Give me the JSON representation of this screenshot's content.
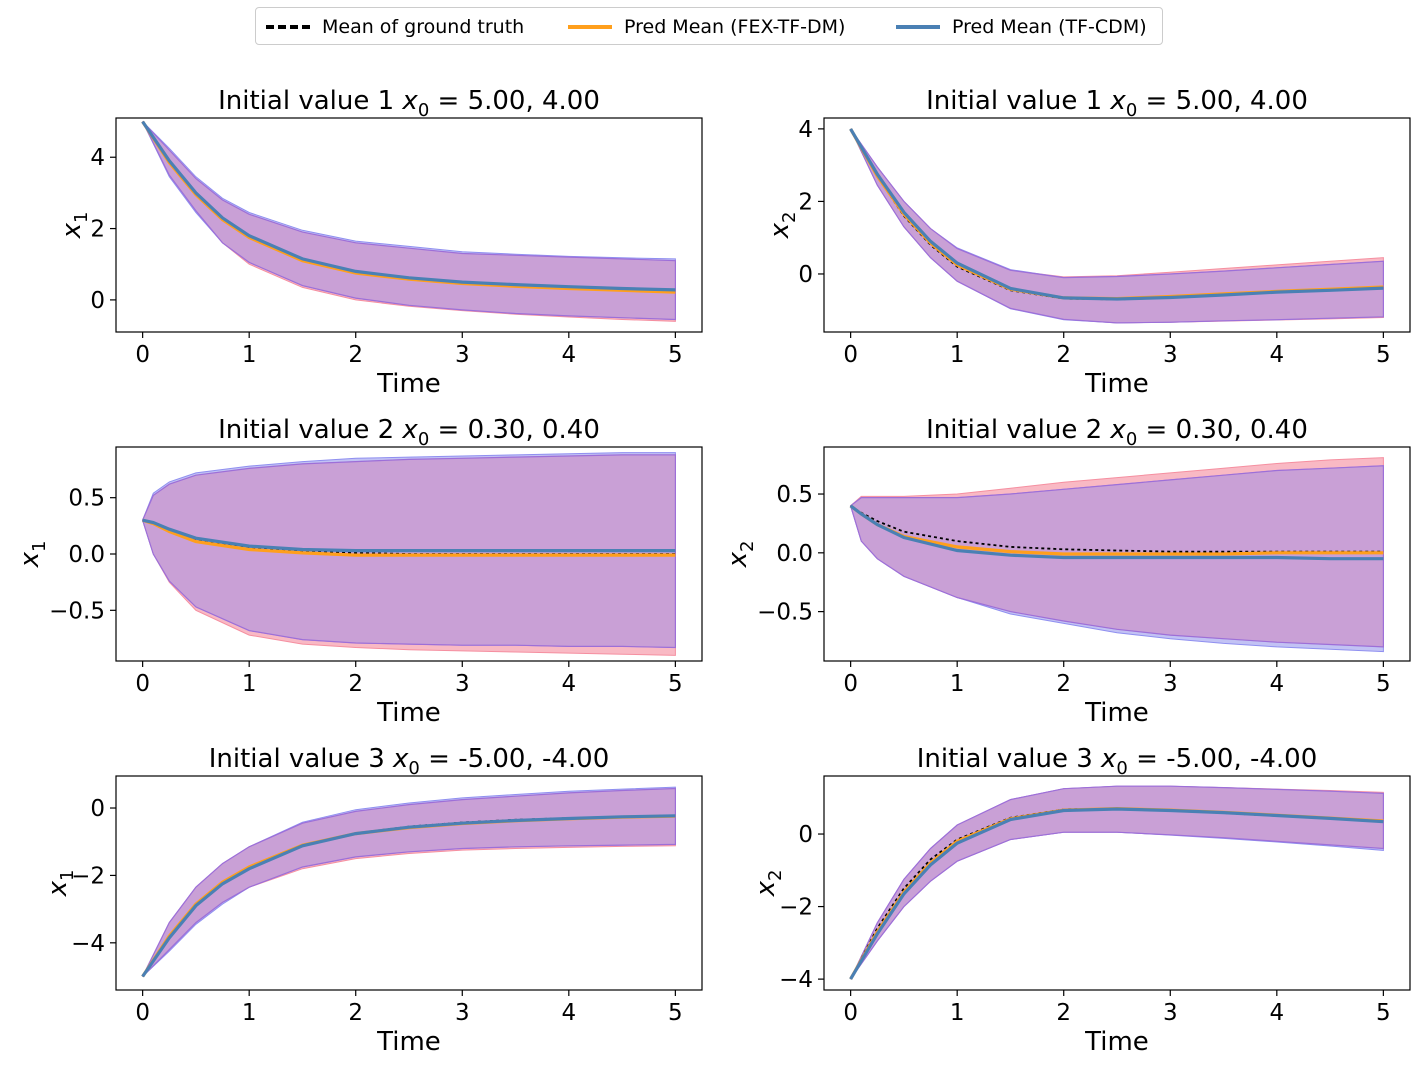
{
  "legend": {
    "items": [
      {
        "label": "Mean of ground truth",
        "color": "#000000",
        "style": "dashed"
      },
      {
        "label": "Pred Mean (FEX-TF-DM)",
        "color": "#ff9f1c",
        "style": "solid"
      },
      {
        "label": "Pred Mean (TF-CDM)",
        "color": "#4a80b4",
        "style": "solid"
      }
    ]
  },
  "colors": {
    "band_fex": "#f7a1b0",
    "band_cdm": "#a8a8f0",
    "band_overlap": "#c9a0d6",
    "band_edge": "#9d6fd8"
  },
  "chart_data": [
    {
      "type": "line",
      "title": "Initial value 1 x0 = 5.00, 4.00",
      "title_prefix": "Initial value 1 ",
      "title_suffix": " = 5.00, 4.00",
      "xlabel": "Time",
      "ylabel_base": "x",
      "ylabel_sub": "1",
      "xlim": [
        -0.25,
        5.25
      ],
      "ylim": [
        -0.9,
        5.1
      ],
      "xticks": [
        0,
        1,
        2,
        3,
        4,
        5
      ],
      "yticks": [
        0,
        2,
        4
      ],
      "ytick_labels": [
        "0",
        "2",
        "4"
      ],
      "x": [
        0,
        0.25,
        0.5,
        0.75,
        1,
        1.5,
        2,
        2.5,
        3,
        3.5,
        4,
        4.5,
        5
      ],
      "gt_mean": [
        5.0,
        3.9,
        3.0,
        2.3,
        1.8,
        1.1,
        0.75,
        0.6,
        0.48,
        0.42,
        0.36,
        0.32,
        0.28
      ],
      "fex_mean": [
        5.0,
        3.85,
        2.95,
        2.25,
        1.75,
        1.1,
        0.75,
        0.58,
        0.46,
        0.38,
        0.32,
        0.27,
        0.22
      ],
      "cdm_mean": [
        5.0,
        3.9,
        3.0,
        2.3,
        1.8,
        1.15,
        0.8,
        0.62,
        0.5,
        0.43,
        0.37,
        0.32,
        0.28
      ],
      "fex_lower": [
        5.0,
        3.5,
        2.5,
        1.6,
        1.0,
        0.35,
        0.0,
        -0.18,
        -0.3,
        -0.4,
        -0.48,
        -0.55,
        -0.6
      ],
      "fex_upper": [
        5.0,
        4.2,
        3.4,
        2.8,
        2.4,
        1.9,
        1.6,
        1.45,
        1.3,
        1.25,
        1.2,
        1.15,
        1.1
      ],
      "cdm_lower": [
        5.0,
        3.45,
        2.45,
        1.6,
        1.05,
        0.4,
        0.05,
        -0.15,
        -0.28,
        -0.38,
        -0.45,
        -0.5,
        -0.55
      ],
      "cdm_upper": [
        5.0,
        4.25,
        3.45,
        2.85,
        2.45,
        1.95,
        1.65,
        1.5,
        1.35,
        1.28,
        1.22,
        1.18,
        1.15
      ]
    },
    {
      "type": "line",
      "title": "Initial value 1 x0 = 5.00, 4.00",
      "title_prefix": "Initial value 1 ",
      "title_suffix": " = 5.00, 4.00",
      "xlabel": "Time",
      "ylabel_base": "x",
      "ylabel_sub": "2",
      "xlim": [
        -0.25,
        5.25
      ],
      "ylim": [
        -1.6,
        4.3
      ],
      "xticks": [
        0,
        1,
        2,
        3,
        4,
        5
      ],
      "yticks": [
        0,
        2,
        4
      ],
      "ytick_labels": [
        "0",
        "2",
        "4"
      ],
      "x": [
        0,
        0.25,
        0.5,
        0.75,
        1,
        1.5,
        2,
        2.5,
        3,
        3.5,
        4,
        4.5,
        5
      ],
      "gt_mean": [
        4.0,
        2.7,
        1.6,
        0.8,
        0.2,
        -0.45,
        -0.68,
        -0.7,
        -0.65,
        -0.58,
        -0.5,
        -0.45,
        -0.38
      ],
      "fex_mean": [
        4.0,
        2.7,
        1.65,
        0.85,
        0.25,
        -0.42,
        -0.66,
        -0.68,
        -0.62,
        -0.55,
        -0.48,
        -0.42,
        -0.36
      ],
      "cdm_mean": [
        4.0,
        2.75,
        1.7,
        0.9,
        0.3,
        -0.4,
        -0.66,
        -0.69,
        -0.65,
        -0.58,
        -0.5,
        -0.45,
        -0.39
      ],
      "fex_lower": [
        4.0,
        2.45,
        1.3,
        0.45,
        -0.2,
        -0.95,
        -1.25,
        -1.35,
        -1.33,
        -1.3,
        -1.27,
        -1.24,
        -1.2
      ],
      "fex_upper": [
        4.0,
        2.95,
        2.0,
        1.25,
        0.7,
        0.1,
        -0.08,
        -0.05,
        0.05,
        0.15,
        0.25,
        0.35,
        0.45
      ],
      "cdm_lower": [
        4.0,
        2.45,
        1.3,
        0.45,
        -0.2,
        -0.96,
        -1.26,
        -1.35,
        -1.33,
        -1.29,
        -1.26,
        -1.22,
        -1.18
      ],
      "cdm_upper": [
        4.0,
        2.95,
        2.0,
        1.25,
        0.72,
        0.12,
        -0.1,
        -0.07,
        0.0,
        0.08,
        0.17,
        0.26,
        0.35
      ]
    },
    {
      "type": "line",
      "title": "Initial value 2 x0 = 0.30, 0.40",
      "title_prefix": "Initial value 2 ",
      "title_suffix": " = 0.30, 0.40",
      "xlabel": "Time",
      "ylabel_base": "x",
      "ylabel_sub": "1",
      "xlim": [
        -0.25,
        5.25
      ],
      "ylim": [
        -0.95,
        0.95
      ],
      "xticks": [
        0,
        1,
        2,
        3,
        4,
        5
      ],
      "yticks": [
        -0.5,
        0,
        0.5
      ],
      "ytick_labels": [
        "−0.5",
        "0.0",
        "0.5"
      ],
      "x": [
        0,
        0.1,
        0.25,
        0.5,
        1,
        1.5,
        2,
        2.5,
        3,
        3.5,
        4,
        4.5,
        5
      ],
      "gt_mean": [
        0.3,
        0.27,
        0.2,
        0.12,
        0.05,
        0.02,
        0.01,
        0.0,
        0.0,
        0.0,
        0.0,
        0.0,
        0.0
      ],
      "fex_mean": [
        0.3,
        0.27,
        0.2,
        0.11,
        0.04,
        0.01,
        -0.01,
        -0.01,
        -0.01,
        -0.01,
        -0.01,
        -0.01,
        -0.01
      ],
      "cdm_mean": [
        0.3,
        0.28,
        0.22,
        0.14,
        0.07,
        0.04,
        0.03,
        0.03,
        0.03,
        0.03,
        0.03,
        0.03,
        0.03
      ],
      "fex_lower": [
        0.3,
        0.0,
        -0.25,
        -0.5,
        -0.72,
        -0.8,
        -0.83,
        -0.85,
        -0.86,
        -0.87,
        -0.88,
        -0.89,
        -0.9
      ],
      "fex_upper": [
        0.3,
        0.52,
        0.62,
        0.7,
        0.76,
        0.8,
        0.82,
        0.84,
        0.85,
        0.86,
        0.87,
        0.88,
        0.88
      ],
      "cdm_lower": [
        0.3,
        0.0,
        -0.24,
        -0.47,
        -0.68,
        -0.76,
        -0.79,
        -0.8,
        -0.81,
        -0.81,
        -0.82,
        -0.82,
        -0.83
      ],
      "cdm_upper": [
        0.3,
        0.54,
        0.64,
        0.72,
        0.78,
        0.82,
        0.85,
        0.86,
        0.87,
        0.88,
        0.89,
        0.9,
        0.9
      ]
    },
    {
      "type": "line",
      "title": "Initial value 2 x0 = 0.30, 0.40",
      "title_prefix": "Initial value 2 ",
      "title_suffix": " = 0.30, 0.40",
      "xlabel": "Time",
      "ylabel_base": "x",
      "ylabel_sub": "2",
      "xlim": [
        -0.25,
        5.25
      ],
      "ylim": [
        -0.92,
        0.9
      ],
      "xticks": [
        0,
        1,
        2,
        3,
        4,
        5
      ],
      "yticks": [
        -0.5,
        0,
        0.5
      ],
      "ytick_labels": [
        "−0.5",
        "0.0",
        "0.5"
      ],
      "x": [
        0,
        0.1,
        0.25,
        0.5,
        1,
        1.5,
        2,
        2.5,
        3,
        3.5,
        4,
        4.5,
        5
      ],
      "gt_mean": [
        0.4,
        0.34,
        0.27,
        0.18,
        0.1,
        0.05,
        0.03,
        0.02,
        0.01,
        0.01,
        0.01,
        0.01,
        0.01
      ],
      "fex_mean": [
        0.4,
        0.33,
        0.24,
        0.14,
        0.05,
        0.01,
        -0.01,
        -0.01,
        -0.01,
        -0.01,
        0.0,
        0.0,
        0.0
      ],
      "cdm_mean": [
        0.4,
        0.33,
        0.24,
        0.13,
        0.02,
        -0.02,
        -0.04,
        -0.04,
        -0.04,
        -0.04,
        -0.04,
        -0.05,
        -0.05
      ],
      "fex_lower": [
        0.4,
        0.1,
        -0.05,
        -0.2,
        -0.38,
        -0.5,
        -0.58,
        -0.65,
        -0.7,
        -0.73,
        -0.76,
        -0.78,
        -0.8
      ],
      "fex_upper": [
        0.4,
        0.48,
        0.48,
        0.48,
        0.5,
        0.55,
        0.6,
        0.64,
        0.68,
        0.72,
        0.76,
        0.79,
        0.81
      ],
      "cdm_lower": [
        0.4,
        0.1,
        -0.05,
        -0.2,
        -0.38,
        -0.52,
        -0.6,
        -0.68,
        -0.73,
        -0.77,
        -0.8,
        -0.82,
        -0.84
      ],
      "cdm_upper": [
        0.4,
        0.47,
        0.47,
        0.47,
        0.47,
        0.5,
        0.54,
        0.58,
        0.62,
        0.66,
        0.7,
        0.72,
        0.74
      ]
    },
    {
      "type": "line",
      "title": "Initial value 3 x0 = -5.00, -4.00",
      "title_prefix": "Initial value 3 ",
      "title_suffix": " = -5.00, -4.00",
      "xlabel": "Time",
      "ylabel_base": "x",
      "ylabel_sub": "1",
      "xlim": [
        -0.25,
        5.25
      ],
      "ylim": [
        -5.4,
        0.95
      ],
      "xticks": [
        0,
        1,
        2,
        3,
        4,
        5
      ],
      "yticks": [
        -4,
        -2,
        0
      ],
      "ytick_labels": [
        "−4",
        "−2",
        "0"
      ],
      "x": [
        0,
        0.25,
        0.5,
        0.75,
        1,
        1.5,
        2,
        2.5,
        3,
        3.5,
        4,
        4.5,
        5
      ],
      "gt_mean": [
        -5.0,
        -3.8,
        -2.9,
        -2.2,
        -1.75,
        -1.1,
        -0.75,
        -0.55,
        -0.43,
        -0.35,
        -0.3,
        -0.26,
        -0.22
      ],
      "fex_mean": [
        -5.0,
        -3.8,
        -2.85,
        -2.2,
        -1.75,
        -1.1,
        -0.76,
        -0.58,
        -0.46,
        -0.38,
        -0.32,
        -0.27,
        -0.24
      ],
      "cdm_mean": [
        -5.0,
        -3.85,
        -2.9,
        -2.25,
        -1.8,
        -1.12,
        -0.76,
        -0.57,
        -0.45,
        -0.37,
        -0.31,
        -0.26,
        -0.23
      ],
      "fex_lower": [
        -5.0,
        -4.2,
        -3.4,
        -2.8,
        -2.35,
        -1.8,
        -1.5,
        -1.35,
        -1.25,
        -1.2,
        -1.17,
        -1.14,
        -1.12
      ],
      "fex_upper": [
        -5.0,
        -3.4,
        -2.35,
        -1.65,
        -1.15,
        -0.45,
        -0.1,
        0.1,
        0.25,
        0.35,
        0.45,
        0.52,
        0.58
      ],
      "cdm_lower": [
        -5.0,
        -4.25,
        -3.45,
        -2.85,
        -2.35,
        -1.75,
        -1.45,
        -1.3,
        -1.2,
        -1.15,
        -1.12,
        -1.1,
        -1.08
      ],
      "cdm_upper": [
        -5.0,
        -3.4,
        -2.35,
        -1.65,
        -1.15,
        -0.42,
        -0.05,
        0.15,
        0.3,
        0.4,
        0.5,
        0.56,
        0.62
      ]
    },
    {
      "type": "line",
      "title": "Initial value 3 x0 = -5.00, -4.00",
      "title_prefix": "Initial value 3 ",
      "title_suffix": " = -5.00, -4.00",
      "xlabel": "Time",
      "ylabel_base": "x",
      "ylabel_sub": "2",
      "xlim": [
        -0.25,
        5.25
      ],
      "ylim": [
        -4.3,
        1.6
      ],
      "xticks": [
        0,
        1,
        2,
        3,
        4,
        5
      ],
      "yticks": [
        -4,
        -2,
        0
      ],
      "ytick_labels": [
        "−4",
        "−2",
        "0"
      ],
      "x": [
        0,
        0.25,
        0.5,
        0.75,
        1,
        1.5,
        2,
        2.5,
        3,
        3.5,
        4,
        4.5,
        5
      ],
      "gt_mean": [
        -4.0,
        -2.6,
        -1.5,
        -0.7,
        -0.15,
        0.45,
        0.68,
        0.7,
        0.65,
        0.58,
        0.5,
        0.43,
        0.35
      ],
      "fex_mean": [
        -4.0,
        -2.7,
        -1.6,
        -0.8,
        -0.2,
        0.42,
        0.66,
        0.7,
        0.66,
        0.6,
        0.52,
        0.44,
        0.36
      ],
      "cdm_mean": [
        -4.0,
        -2.75,
        -1.65,
        -0.85,
        -0.25,
        0.4,
        0.65,
        0.69,
        0.65,
        0.59,
        0.51,
        0.43,
        0.34
      ],
      "fex_lower": [
        -4.0,
        -2.95,
        -2.0,
        -1.3,
        -0.75,
        -0.15,
        0.05,
        0.05,
        -0.02,
        -0.1,
        -0.2,
        -0.3,
        -0.4
      ],
      "fex_upper": [
        -4.0,
        -2.45,
        -1.25,
        -0.4,
        0.25,
        0.95,
        1.25,
        1.32,
        1.32,
        1.28,
        1.24,
        1.2,
        1.15
      ],
      "cdm_lower": [
        -4.0,
        -2.95,
        -2.0,
        -1.3,
        -0.75,
        -0.15,
        0.05,
        0.05,
        -0.03,
        -0.12,
        -0.22,
        -0.33,
        -0.45
      ],
      "cdm_upper": [
        -4.0,
        -2.45,
        -1.25,
        -0.4,
        0.25,
        0.95,
        1.25,
        1.32,
        1.32,
        1.28,
        1.23,
        1.18,
        1.12
      ]
    }
  ]
}
